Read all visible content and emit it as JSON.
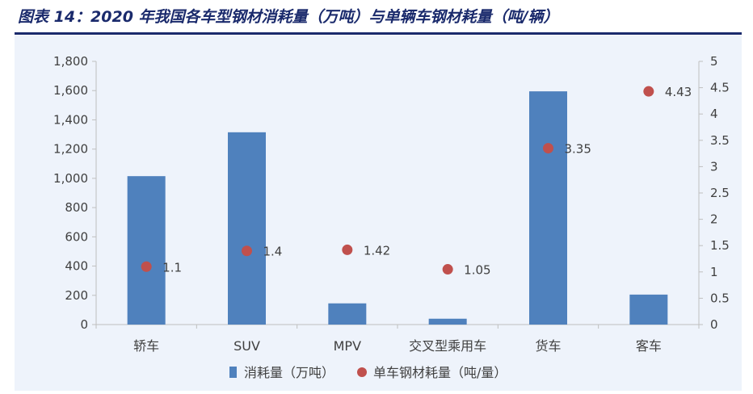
{
  "title": "图表 14：2020 年我国各车型钢材消耗量（万吨）与单辆车钢材耗量（吨/辆）",
  "chart_data": {
    "type": "bar",
    "categories": [
      "轿车",
      "SUV",
      "MPV",
      "交叉型乘用车",
      "货车",
      "客车"
    ],
    "series": [
      {
        "name": "消耗量（万吨）",
        "type": "bar",
        "axis": "left",
        "values": [
          1015,
          1315,
          145,
          40,
          1595,
          205
        ]
      },
      {
        "name": "单车钢材耗量（吨/量）",
        "type": "scatter",
        "axis": "right",
        "values": [
          1.1,
          1.4,
          1.42,
          1.05,
          3.35,
          4.43
        ]
      }
    ],
    "data_labels": [
      "1.1",
      "1.4",
      "1.42",
      "1.05",
      "3.35",
      "4.43"
    ],
    "y_left": {
      "lim": [
        0,
        1800
      ],
      "ticks": [
        "0",
        "200",
        "400",
        "600",
        "800",
        "1,000",
        "1,200",
        "1,400",
        "1,600",
        "1,800"
      ]
    },
    "y_right": {
      "lim": [
        0,
        5
      ],
      "ticks": [
        "0",
        "0.5",
        "1",
        "1.5",
        "2",
        "2.5",
        "3",
        "3.5",
        "4",
        "4.5",
        "5"
      ]
    },
    "colors": {
      "bar": "#4f81bd",
      "dot": "#c0504d",
      "axis": "#bfbfbf",
      "text": "#404040"
    },
    "legend_position": "bottom",
    "grid": false
  }
}
